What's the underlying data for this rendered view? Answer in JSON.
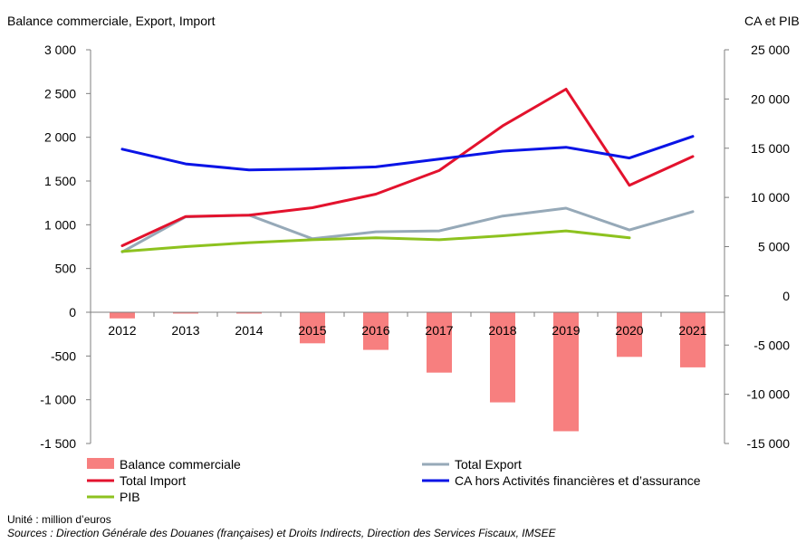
{
  "chart_data": {
    "type": "bar+line",
    "title_left": "Balance commerciale, Export, Import",
    "title_right": "CA et PIB",
    "categories": [
      "2012",
      "2013",
      "2014",
      "2015",
      "2016",
      "2017",
      "2018",
      "2019",
      "2020",
      "2021"
    ],
    "y_left": {
      "range": [
        -1500,
        3000
      ],
      "ticks": [
        3000,
        2500,
        2000,
        1500,
        1000,
        500,
        0,
        -500,
        -1000,
        -1500
      ],
      "tick_labels": [
        "3 000",
        "2 500",
        "2 000",
        "1 500",
        "1 000",
        "500",
        "0",
        "-500",
        "-1 000",
        "-1 500"
      ]
    },
    "y_right": {
      "range": [
        -15000,
        25000
      ],
      "ticks": [
        25000,
        20000,
        15000,
        10000,
        5000,
        0,
        -5000,
        -10000,
        -15000
      ],
      "tick_labels": [
        "25 000",
        "20 000",
        "15 000",
        "10 000",
        "5 000",
        "0",
        "-5 000",
        "-10 000",
        "-15 000"
      ]
    },
    "series": [
      {
        "name": "Balance commerciale",
        "kind": "bar",
        "axis": "left",
        "color": "#f77f7f",
        "values": [
          -70,
          -5,
          -5,
          -355,
          -430,
          -690,
          -1030,
          -1360,
          -510,
          -630
        ]
      },
      {
        "name": "Total Export",
        "kind": "line",
        "axis": "left",
        "color": "#96a9b8",
        "values": [
          690,
          1090,
          1110,
          840,
          920,
          930,
          1100,
          1190,
          940,
          1150
        ]
      },
      {
        "name": "Total Import",
        "kind": "line",
        "axis": "left",
        "color": "#e3122d",
        "values": [
          760,
          1095,
          1110,
          1195,
          1350,
          1620,
          2130,
          2550,
          1450,
          1780
        ]
      },
      {
        "name": "CA hors Activités financières et d’assurance",
        "kind": "line",
        "axis": "right",
        "color": "#0a14e6",
        "values": [
          14900,
          13400,
          12800,
          12900,
          13100,
          13900,
          14700,
          15100,
          14000,
          16200
        ]
      },
      {
        "name": "PIB",
        "kind": "line",
        "axis": "right",
        "color": "#8dc21f",
        "values": [
          4500,
          5000,
          5400,
          5700,
          5900,
          5700,
          6100,
          6600,
          5900,
          null
        ]
      }
    ],
    "legend_placement": "bottom",
    "grid": false
  },
  "notes": {
    "unit": "Unité : million d’euros",
    "sources": "Sources : Direction Générale des Douanes (françaises) et Droits Indirects, Direction des Services Fiscaux, IMSEE"
  }
}
